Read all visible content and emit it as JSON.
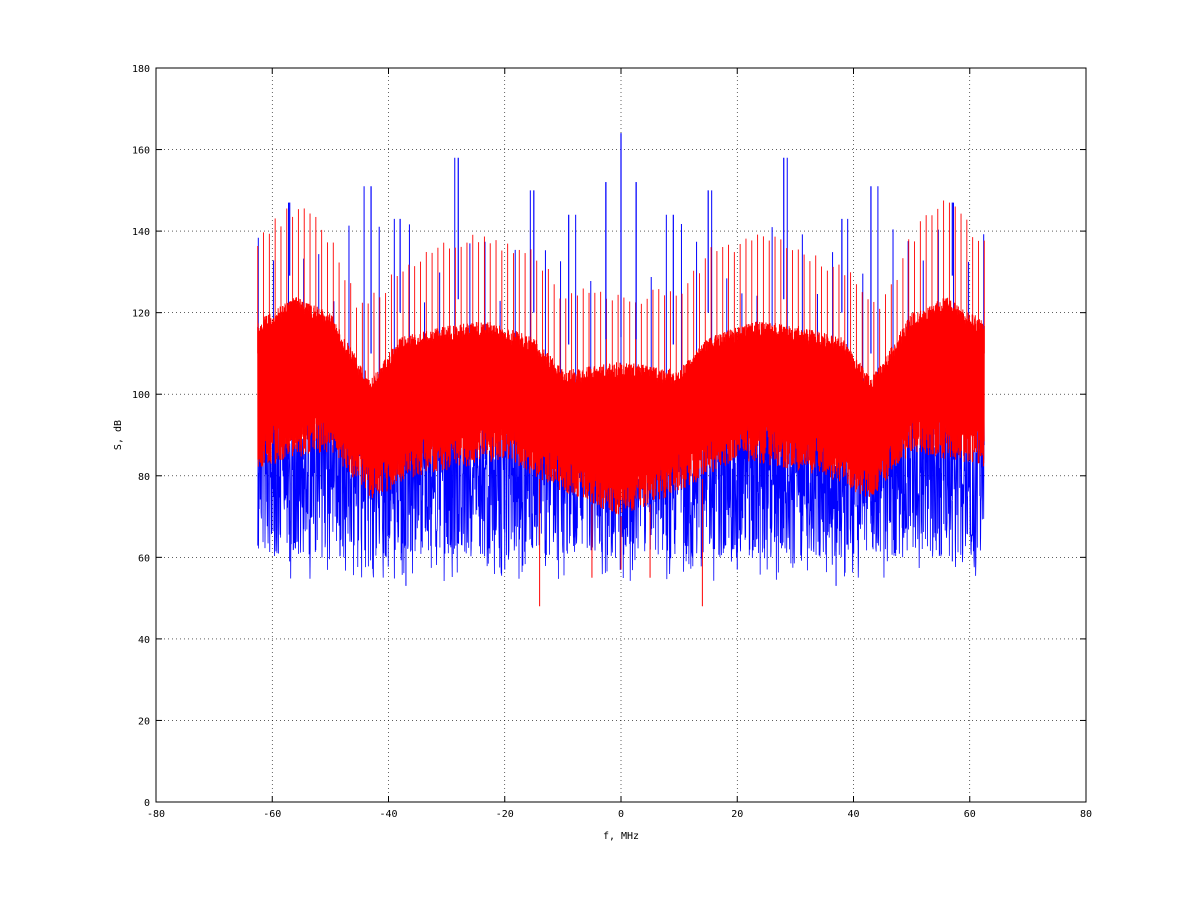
{
  "chart_data": {
    "type": "line",
    "title": "",
    "xlabel": "f, MHz",
    "ylabel": "S, dB",
    "xlim": [
      -80,
      80
    ],
    "ylim": [
      0,
      180
    ],
    "xticks": [
      -80,
      -60,
      -40,
      -20,
      0,
      20,
      40,
      60,
      80
    ],
    "yticks": [
      0,
      20,
      40,
      60,
      80,
      100,
      120,
      140,
      160,
      180
    ],
    "grid": true,
    "legend": "none",
    "x_range": [
      -62.5,
      62.5
    ],
    "series": [
      {
        "color": "#0000ff",
        "style": "spectrum",
        "baseline_db": 84,
        "noise_floor_range_db": [
          60,
          104
        ],
        "harmonic_spacing_mhz": 2.6,
        "harmonic_peaks_db": [
          [
            0,
            164
          ],
          [
            -28,
            158
          ],
          [
            28,
            158
          ],
          [
            -2.6,
            152
          ],
          [
            2.6,
            152
          ],
          [
            -43,
            151
          ],
          [
            43,
            151
          ],
          [
            -15,
            150
          ],
          [
            15,
            150
          ],
          [
            -57,
            147
          ],
          [
            57,
            147
          ],
          [
            -38,
            143
          ],
          [
            38,
            143
          ],
          [
            -9,
            144
          ],
          [
            9,
            144
          ]
        ],
        "minima_db": [
          [
            -37,
            53
          ],
          [
            37,
            53
          ],
          [
            -57,
            59
          ],
          [
            57,
            59
          ],
          [
            -20,
            57
          ],
          [
            20,
            57
          ]
        ]
      },
      {
        "color": "#ff0000",
        "style": "spectrum",
        "envelope_db": [
          [
            -62.5,
            118
          ],
          [
            -56,
            124
          ],
          [
            -50,
            120
          ],
          [
            -45,
            108
          ],
          [
            -43,
            104
          ],
          [
            -38,
            114
          ],
          [
            -30,
            117
          ],
          [
            -23,
            118
          ],
          [
            -15,
            114
          ],
          [
            -10,
            106
          ],
          [
            -5,
            107
          ],
          [
            0,
            108
          ],
          [
            5,
            107
          ],
          [
            10,
            106
          ],
          [
            15,
            114
          ],
          [
            23,
            118
          ],
          [
            30,
            117
          ],
          [
            38,
            114
          ],
          [
            43,
            104
          ],
          [
            45,
            108
          ],
          [
            50,
            120
          ],
          [
            56,
            124
          ],
          [
            62.5,
            118
          ]
        ],
        "lower_envelope_db": [
          [
            -62.5,
            82
          ],
          [
            -50,
            86
          ],
          [
            -43,
            74
          ],
          [
            -35,
            80
          ],
          [
            -20,
            84
          ],
          [
            -10,
            76
          ],
          [
            0,
            70
          ],
          [
            10,
            76
          ],
          [
            20,
            84
          ],
          [
            35,
            80
          ],
          [
            43,
            74
          ],
          [
            50,
            86
          ],
          [
            62.5,
            82
          ]
        ],
        "harmonic_spacing_mhz": 1.0,
        "harmonic_peaks_db": [
          [
            -62.5,
            140
          ],
          [
            -56,
            148
          ],
          [
            -54,
            148
          ],
          [
            -50,
            140
          ],
          [
            -45,
            123
          ],
          [
            -38,
            132
          ],
          [
            -30,
            138
          ],
          [
            -23,
            140
          ],
          [
            -15,
            136
          ],
          [
            -10,
            126
          ],
          [
            0,
            126
          ],
          [
            10,
            126
          ],
          [
            15,
            136
          ],
          [
            23,
            140
          ],
          [
            30,
            138
          ],
          [
            38,
            132
          ],
          [
            45,
            123
          ],
          [
            50,
            140
          ],
          [
            54,
            148
          ],
          [
            56,
            148
          ],
          [
            62.5,
            140
          ]
        ],
        "minima_db": [
          [
            -14,
            48
          ],
          [
            14,
            48
          ],
          [
            -5,
            55
          ],
          [
            5,
            55
          ],
          [
            0,
            57
          ]
        ]
      }
    ]
  }
}
